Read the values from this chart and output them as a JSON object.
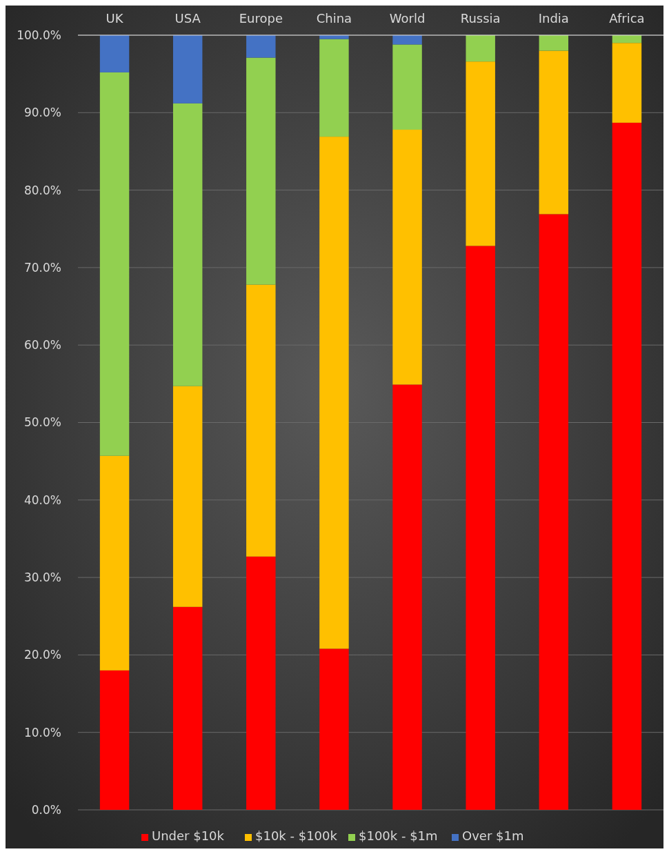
{
  "chart_data": {
    "type": "bar",
    "stacked": true,
    "categories": [
      "UK",
      "USA",
      "Europe",
      "China",
      "World",
      "Russia",
      "India",
      "Africa"
    ],
    "series": [
      {
        "name": "Under $10k",
        "color": "#ff0000",
        "values": [
          18.0,
          26.2,
          32.7,
          20.8,
          54.9,
          72.8,
          76.9,
          88.7
        ]
      },
      {
        "name": "$10k - $100k",
        "color": "#ffc000",
        "values": [
          27.7,
          28.5,
          35.1,
          66.1,
          32.9,
          23.8,
          21.1,
          10.3
        ]
      },
      {
        "name": "$100k - $1m",
        "color": "#92d050",
        "values": [
          49.5,
          36.5,
          29.3,
          12.6,
          11.0,
          3.4,
          2.0,
          1.0
        ]
      },
      {
        "name": "Over $1m",
        "color": "#4472c4",
        "values": [
          4.8,
          8.8,
          2.9,
          0.5,
          1.2,
          0,
          0,
          0
        ]
      }
    ],
    "ylim": [
      0,
      100
    ],
    "yticks": [
      {
        "value": 0,
        "label": "0.0%"
      },
      {
        "value": 10,
        "label": "10.0%"
      },
      {
        "value": 20,
        "label": "20.0%"
      },
      {
        "value": 30,
        "label": "30.0%"
      },
      {
        "value": 40,
        "label": "40.0%"
      },
      {
        "value": 50,
        "label": "50.0%"
      },
      {
        "value": 60,
        "label": "60.0%"
      },
      {
        "value": 70,
        "label": "70.0%"
      },
      {
        "value": 80,
        "label": "80.0%"
      },
      {
        "value": 90,
        "label": "90.0%"
      },
      {
        "value": 100,
        "label": "100.0%"
      }
    ],
    "grid": "y",
    "legend": "bottom"
  }
}
